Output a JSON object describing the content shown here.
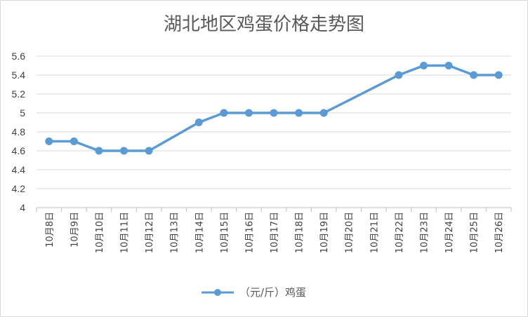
{
  "chart_data": {
    "type": "line",
    "title": "湖北地区鸡蛋价格走势图",
    "xlabel": "",
    "ylabel": "",
    "ylim": [
      4,
      5.6
    ],
    "yticks": [
      "5.6",
      "5.4",
      "5.2",
      "5",
      "4.8",
      "4.6",
      "4.4",
      "4.2",
      "4"
    ],
    "ytick_values": [
      5.6,
      5.4,
      5.2,
      5.0,
      4.8,
      4.6,
      4.4,
      4.2,
      4.0
    ],
    "categories": [
      "10月8日",
      "10月9日",
      "10月10日",
      "10月11日",
      "10月12日",
      "10月13日",
      "10月14日",
      "10月15日",
      "10月16日",
      "10月17日",
      "10月18日",
      "10月19日",
      "10月20日",
      "10月21日",
      "10月22日",
      "10月23日",
      "10月24日",
      "10月25日",
      "10月26日"
    ],
    "series": [
      {
        "name": "（元/斤）鸡蛋",
        "color": "#5b9bd5",
        "values": [
          4.7,
          4.7,
          4.6,
          4.6,
          4.6,
          null,
          4.9,
          5.0,
          5.0,
          5.0,
          5.0,
          5.0,
          null,
          null,
          5.4,
          5.5,
          5.5,
          5.4,
          5.4
        ]
      }
    ],
    "grid": true,
    "legend": "bottom"
  }
}
